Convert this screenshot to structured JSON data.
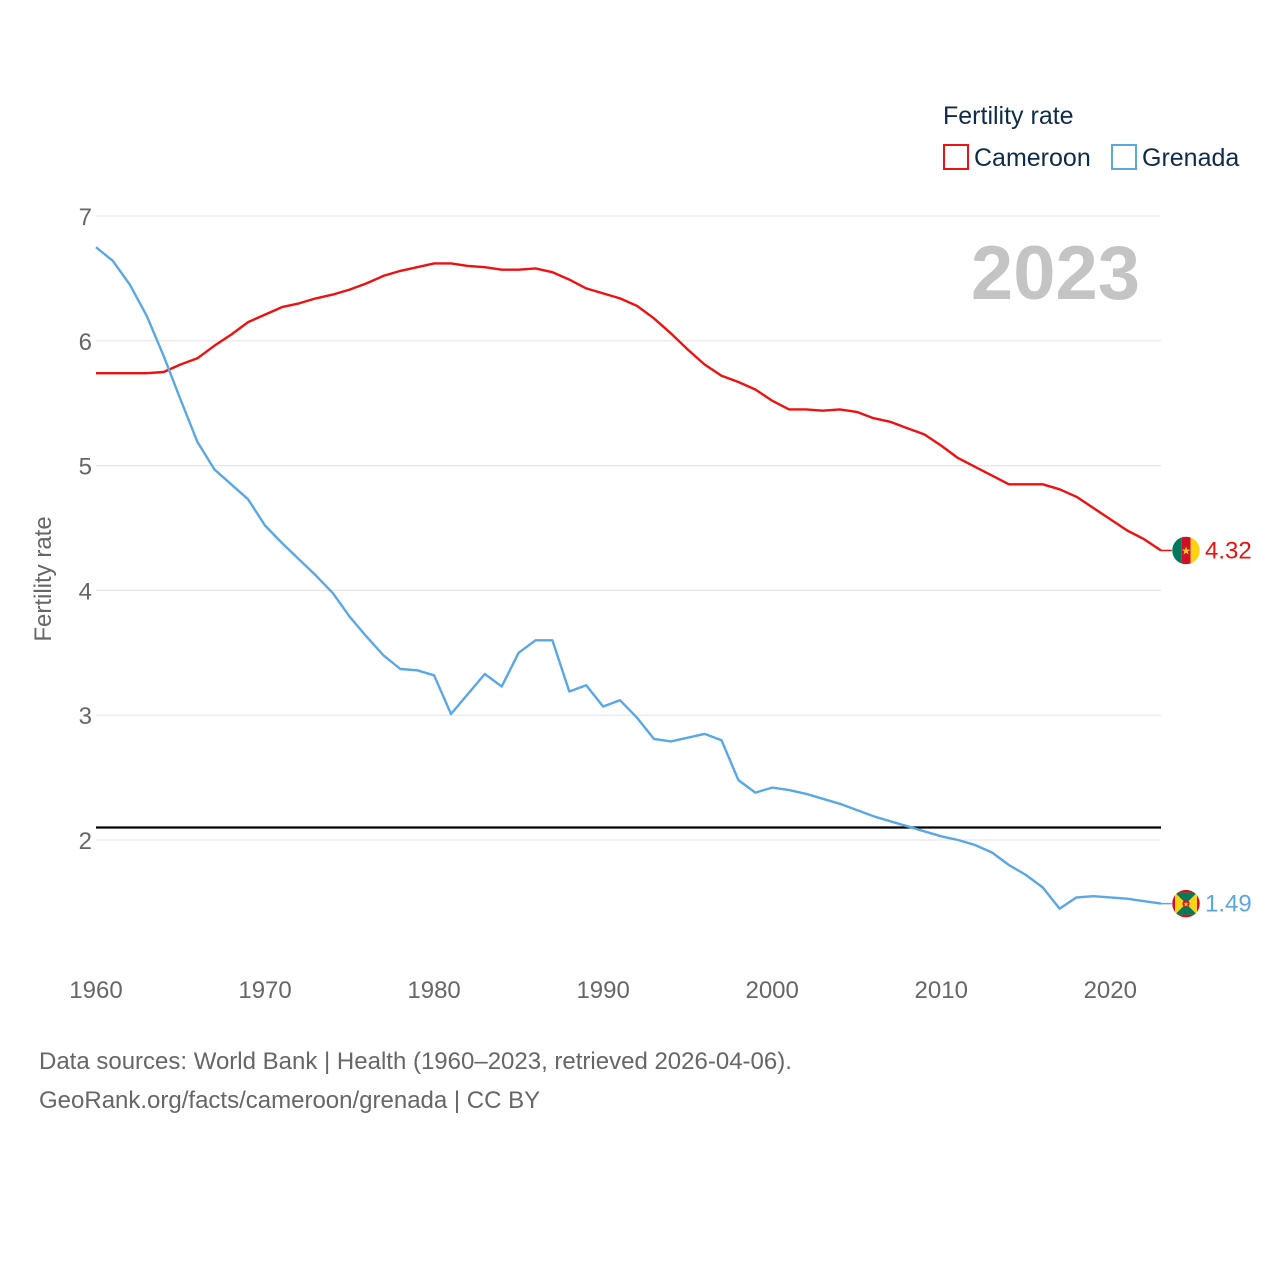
{
  "chart_data": {
    "type": "line",
    "title": "",
    "year_label": "2023",
    "legend_title": "Fertility rate",
    "ylabel": "Fertility rate",
    "xlabel": "",
    "xlim": [
      1960,
      2023
    ],
    "ylim": [
      1,
      7
    ],
    "x_ticks": [
      1960,
      1970,
      1980,
      1990,
      2000,
      2010,
      2020
    ],
    "y_ticks": [
      2,
      3,
      4,
      5,
      6,
      7
    ],
    "reference_line": 2.1,
    "x": [
      1960,
      1961,
      1962,
      1963,
      1964,
      1965,
      1966,
      1967,
      1968,
      1969,
      1970,
      1971,
      1972,
      1973,
      1974,
      1975,
      1976,
      1977,
      1978,
      1979,
      1980,
      1981,
      1982,
      1983,
      1984,
      1985,
      1986,
      1987,
      1988,
      1989,
      1990,
      1991,
      1992,
      1993,
      1994,
      1995,
      1996,
      1997,
      1998,
      1999,
      2000,
      2001,
      2002,
      2003,
      2004,
      2005,
      2006,
      2007,
      2008,
      2009,
      2010,
      2011,
      2012,
      2013,
      2014,
      2015,
      2016,
      2017,
      2018,
      2019,
      2020,
      2021,
      2022,
      2023
    ],
    "series": [
      {
        "name": "Cameroon",
        "color": "#ee1111",
        "end_label": "4.32",
        "flag": "cameroon-flag",
        "values": [
          5.74,
          5.74,
          5.74,
          5.74,
          5.75,
          5.81,
          5.86,
          5.96,
          6.05,
          6.15,
          6.21,
          6.27,
          6.3,
          6.34,
          6.37,
          6.41,
          6.46,
          6.52,
          6.56,
          6.59,
          6.62,
          6.62,
          6.6,
          6.59,
          6.57,
          6.57,
          6.58,
          6.55,
          6.49,
          6.42,
          6.38,
          6.34,
          6.28,
          6.18,
          6.06,
          5.93,
          5.81,
          5.72,
          5.67,
          5.61,
          5.52,
          5.45,
          5.45,
          5.44,
          5.45,
          5.43,
          5.38,
          5.35,
          5.3,
          5.25,
          5.16,
          5.06,
          4.99,
          4.92,
          4.85,
          4.85,
          4.85,
          4.81,
          4.75,
          4.66,
          4.57,
          4.48,
          4.41,
          4.32
        ]
      },
      {
        "name": "Grenada",
        "color": "#5aa7e6",
        "end_label": "1.49",
        "flag": "grenada-flag",
        "values": [
          6.75,
          6.64,
          6.45,
          6.2,
          5.88,
          5.53,
          5.19,
          4.97,
          4.85,
          4.73,
          4.52,
          4.38,
          4.25,
          4.12,
          3.98,
          3.79,
          3.63,
          3.48,
          3.37,
          3.36,
          3.32,
          3.01,
          3.17,
          3.33,
          3.23,
          3.5,
          3.6,
          3.6,
          3.19,
          3.24,
          3.07,
          3.12,
          2.98,
          2.81,
          2.79,
          2.82,
          2.85,
          2.8,
          2.48,
          2.38,
          2.42,
          2.4,
          2.37,
          2.33,
          2.29,
          2.24,
          2.19,
          2.15,
          2.11,
          2.07,
          2.03,
          2.0,
          1.96,
          1.9,
          1.8,
          1.72,
          1.62,
          1.45,
          1.54,
          1.55,
          1.54,
          1.53,
          1.51,
          1.49
        ]
      }
    ]
  },
  "footer": {
    "line1": "Data sources: World Bank | Health (1960–2023, retrieved 2026-04-06).",
    "line2": "GeoRank.org/facts/cameroon/grenada | CC BY"
  }
}
